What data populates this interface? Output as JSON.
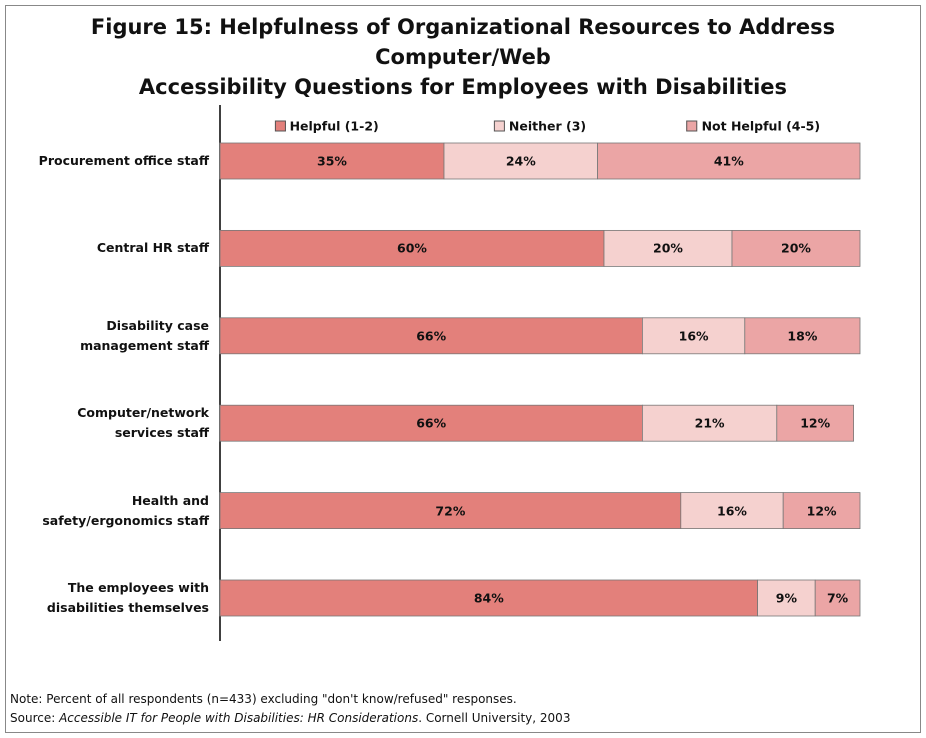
{
  "chart_data": {
    "type": "stacked-bar-horizontal",
    "title": "Figure 15: Helpfulness of Organizational Resources to Address Computer/Web\nAccessibility Questions for Employees with Disabilities",
    "categories": [
      "Procurement office staff",
      "Central HR staff",
      "Disability case\nmanagement staff",
      "Computer/network\nservices staff",
      "Health and\nsafety/ergonomics staff",
      "The employees with\ndisabilities themselves"
    ],
    "series": [
      {
        "name": "Helpful (1-2)",
        "color": "#e3807b",
        "values": [
          35,
          60,
          66,
          66,
          72,
          84
        ],
        "value_labels": [
          "35%",
          "60%",
          "66%",
          "66%",
          "72%",
          "84%"
        ]
      },
      {
        "name": "Neither (3)",
        "color": "#f5d1cf",
        "values": [
          24,
          20,
          16,
          21,
          16,
          9
        ],
        "value_labels": [
          "24%",
          "20%",
          "16%",
          "21%",
          "16%",
          "9%"
        ]
      },
      {
        "name": "Not Helpful (4-5)",
        "color": "#eba5a5",
        "values": [
          41,
          20,
          18,
          12,
          12,
          7
        ],
        "value_labels": [
          "41%",
          "20%",
          "18%",
          "12%",
          "12%",
          "7%"
        ]
      }
    ],
    "xlim": [
      0,
      100
    ]
  },
  "notes": {
    "note": "Note: Percent of all respondents (n=433) excluding \"don't know/refused\" responses.",
    "source_prefix": "Source:",
    "source_title": "Accessible IT for People with Disabilities: HR Considerations",
    "source_suffix": ". Cornell University, 2003"
  }
}
